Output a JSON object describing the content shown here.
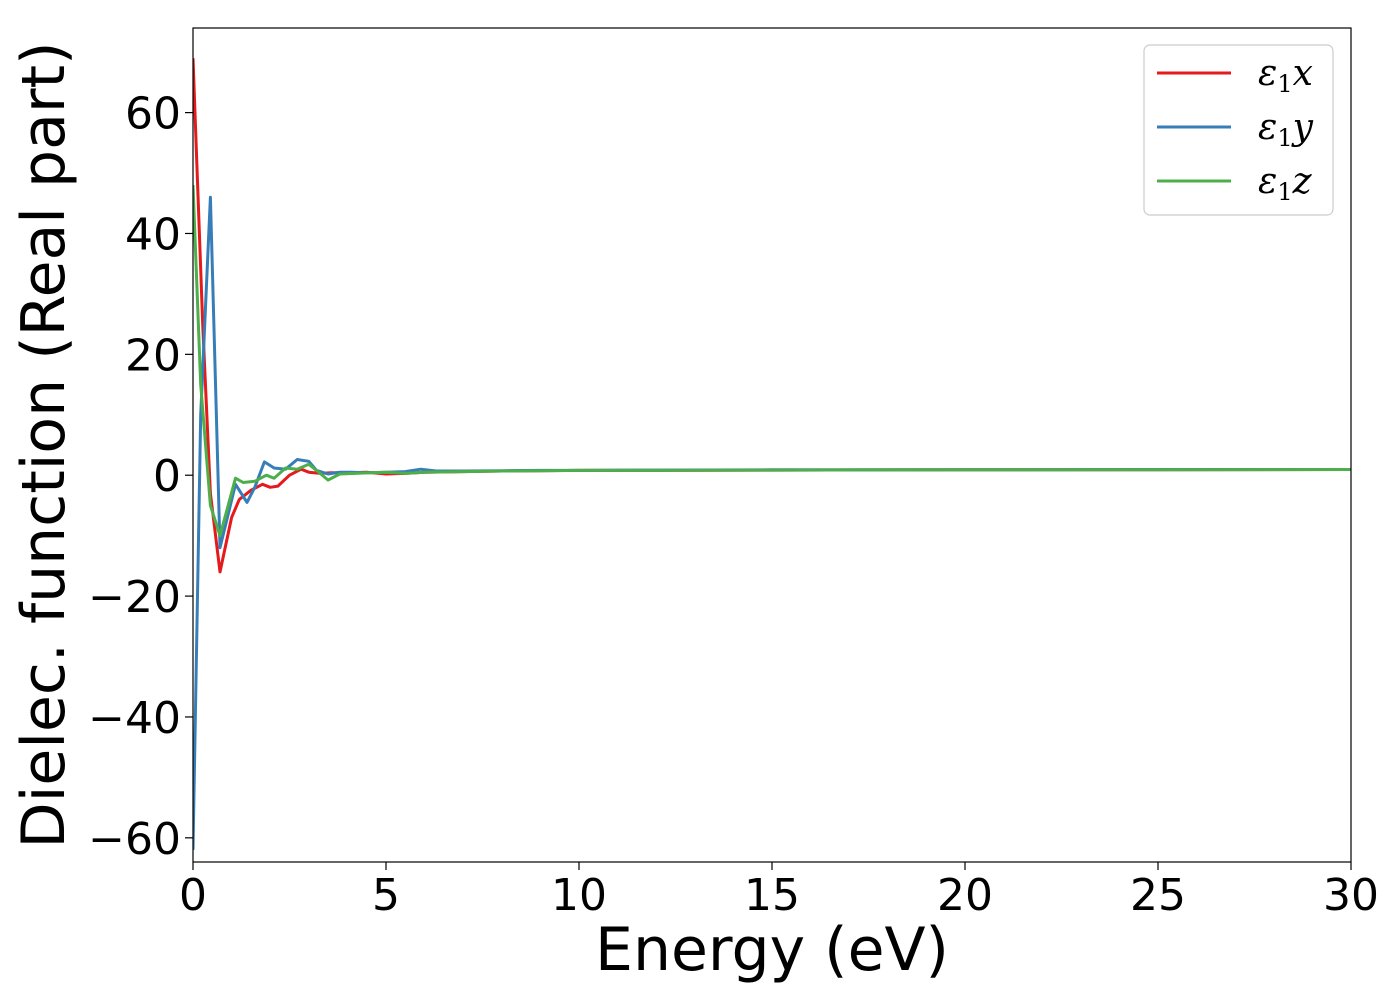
{
  "chart_data": {
    "type": "line",
    "title": "",
    "xlabel": "Energy (eV)",
    "ylabel": "Dielec. function (Real part)",
    "xlim": [
      0,
      30
    ],
    "ylim": [
      -64,
      74
    ],
    "xticks": [
      0,
      5,
      10,
      15,
      20,
      25,
      30
    ],
    "xtick_labels": [
      "0",
      "5",
      "10",
      "15",
      "20",
      "25",
      "30"
    ],
    "yticks": [
      -60,
      -40,
      -20,
      0,
      20,
      40,
      60
    ],
    "ytick_labels": [
      "−60",
      "−40",
      "−20",
      "0",
      "20",
      "40",
      "60"
    ],
    "grid": false,
    "legend_position": "top-right",
    "series": [
      {
        "name": "ε1x",
        "legend_main": "ε",
        "legend_sub": "1",
        "legend_var": "x",
        "color": "#e41a1c",
        "x": [
          0,
          0.25,
          0.45,
          0.7,
          1.0,
          1.2,
          1.5,
          1.8,
          2.0,
          2.2,
          2.5,
          2.8,
          3.0,
          3.3,
          3.6,
          4.0,
          4.5,
          5.0,
          5.5,
          6.0,
          7.0,
          8.0,
          9.0,
          10.0,
          12.0,
          15.0,
          20.0,
          25.0,
          30.0
        ],
        "y": [
          69,
          25,
          -3,
          -16,
          -7,
          -4,
          -2.5,
          -1.5,
          -2,
          -1.8,
          0,
          1,
          0.5,
          0.3,
          0.4,
          0.4,
          0.5,
          0.2,
          0.3,
          0.5,
          0.6,
          0.7,
          0.75,
          0.8,
          0.8,
          0.85,
          0.9,
          0.9,
          0.95
        ]
      },
      {
        "name": "ε1y",
        "legend_main": "ε",
        "legend_sub": "1",
        "legend_var": "y",
        "color": "#377eb8",
        "x": [
          0,
          0.2,
          0.45,
          0.7,
          1.1,
          1.4,
          1.6,
          1.85,
          2.1,
          2.4,
          2.7,
          3.0,
          3.2,
          3.5,
          3.8,
          4.1,
          4.5,
          5.0,
          5.5,
          5.9,
          6.3,
          7.0,
          8.0,
          9.0,
          10.0,
          12.0,
          15.0,
          20.0,
          25.0,
          30.0
        ],
        "y": [
          -62,
          10,
          46,
          -12,
          -1.5,
          -4.5,
          -2,
          2.2,
          1.2,
          1,
          2.6,
          2.3,
          0.8,
          0.2,
          0.5,
          0.5,
          0.4,
          0.5,
          0.6,
          1,
          0.7,
          0.7,
          0.75,
          0.8,
          0.8,
          0.85,
          0.9,
          0.9,
          0.95,
          0.95
        ]
      },
      {
        "name": "ε1z",
        "legend_main": "ε",
        "legend_sub": "1",
        "legend_var": "z",
        "color": "#4daf4a",
        "x": [
          0,
          0.2,
          0.45,
          0.7,
          1.1,
          1.3,
          1.6,
          1.9,
          2.1,
          2.4,
          2.7,
          3.0,
          3.2,
          3.5,
          3.8,
          4.2,
          4.6,
          5.0,
          5.5,
          6.0,
          7.0,
          8.0,
          9.0,
          10.0,
          12.0,
          15.0,
          20.0,
          25.0,
          30.0
        ],
        "y": [
          48,
          15,
          -5,
          -10,
          -0.5,
          -1.2,
          -1,
          0,
          -0.5,
          1.2,
          1,
          1.8,
          0.8,
          -0.8,
          0.2,
          0.3,
          0.4,
          0.5,
          0.3,
          0.5,
          0.6,
          0.7,
          0.75,
          0.8,
          0.8,
          0.85,
          0.9,
          0.9,
          0.95
        ]
      }
    ]
  }
}
